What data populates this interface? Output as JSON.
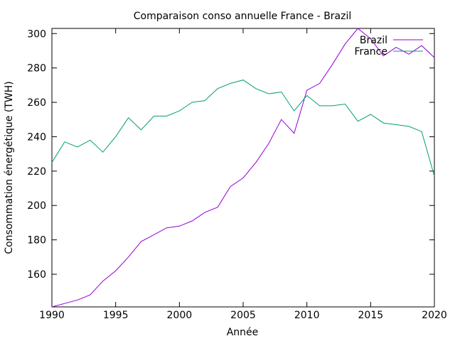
{
  "chart_data": {
    "type": "line",
    "title": "Comparaison conso annuelle France - Brazil",
    "xlabel": "Année",
    "ylabel": "Consommation énergétique (TWH)",
    "xlim": [
      1990,
      2020
    ],
    "ylim": [
      141,
      303
    ],
    "xticks": [
      1990,
      1995,
      2000,
      2005,
      2010,
      2015,
      2020
    ],
    "yticks": [
      160,
      180,
      200,
      220,
      240,
      260,
      280,
      300
    ],
    "grid": false,
    "legend_position": "top-right",
    "x": [
      1990,
      1991,
      1992,
      1993,
      1994,
      1995,
      1996,
      1997,
      1998,
      1999,
      2000,
      2001,
      2002,
      2003,
      2004,
      2005,
      2006,
      2007,
      2008,
      2009,
      2010,
      2011,
      2012,
      2013,
      2014,
      2015,
      2016,
      2017,
      2018,
      2019,
      2020
    ],
    "series": [
      {
        "name": "Brazil",
        "color": "#9400d3",
        "values": [
          141,
          143,
          145,
          148,
          156,
          162,
          170,
          179,
          183,
          187,
          188,
          191,
          196,
          199,
          211,
          216,
          225,
          236,
          250,
          242,
          267,
          271,
          282,
          294,
          303,
          297,
          287,
          292,
          288,
          293,
          286
        ]
      },
      {
        "name": "France",
        "color": "#009e73",
        "values": [
          225,
          237,
          234,
          238,
          231,
          240,
          251,
          244,
          252,
          252,
          255,
          260,
          261,
          268,
          271,
          273,
          268,
          265,
          266,
          255,
          264,
          258,
          258,
          259,
          249,
          253,
          248,
          247,
          246,
          243,
          217
        ]
      }
    ]
  }
}
